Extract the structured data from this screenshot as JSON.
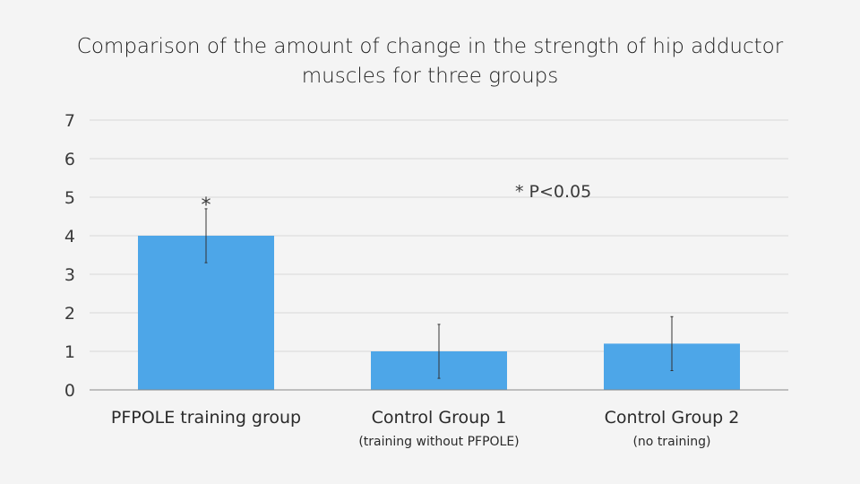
{
  "chart_data": {
    "type": "bar",
    "title_lines": [
      "Comparison of the amount of change in the strength of hip adductor",
      "muscles for three groups"
    ],
    "categories": [
      {
        "label": "PFPOLE training group",
        "sublabel": ""
      },
      {
        "label": "Control Group 1",
        "sublabel": "(training without PFPOLE)"
      },
      {
        "label": "Control Group 2",
        "sublabel": "(no training)"
      }
    ],
    "values": [
      4.0,
      1.0,
      1.2
    ],
    "error_low": [
      3.3,
      0.3,
      0.5
    ],
    "error_high": [
      4.7,
      1.7,
      1.9
    ],
    "significance_markers": [
      "*",
      "",
      ""
    ],
    "annotation": "* P<0.05",
    "ylim": [
      0,
      7
    ],
    "yticks": [
      "0",
      "1",
      "2",
      "3",
      "4",
      "5",
      "6",
      "7"
    ],
    "grid": true,
    "bar_color": "#4da6e8",
    "grid_color": "#d9d9d9",
    "axis_color": "#888888",
    "error_color": "#333333"
  }
}
